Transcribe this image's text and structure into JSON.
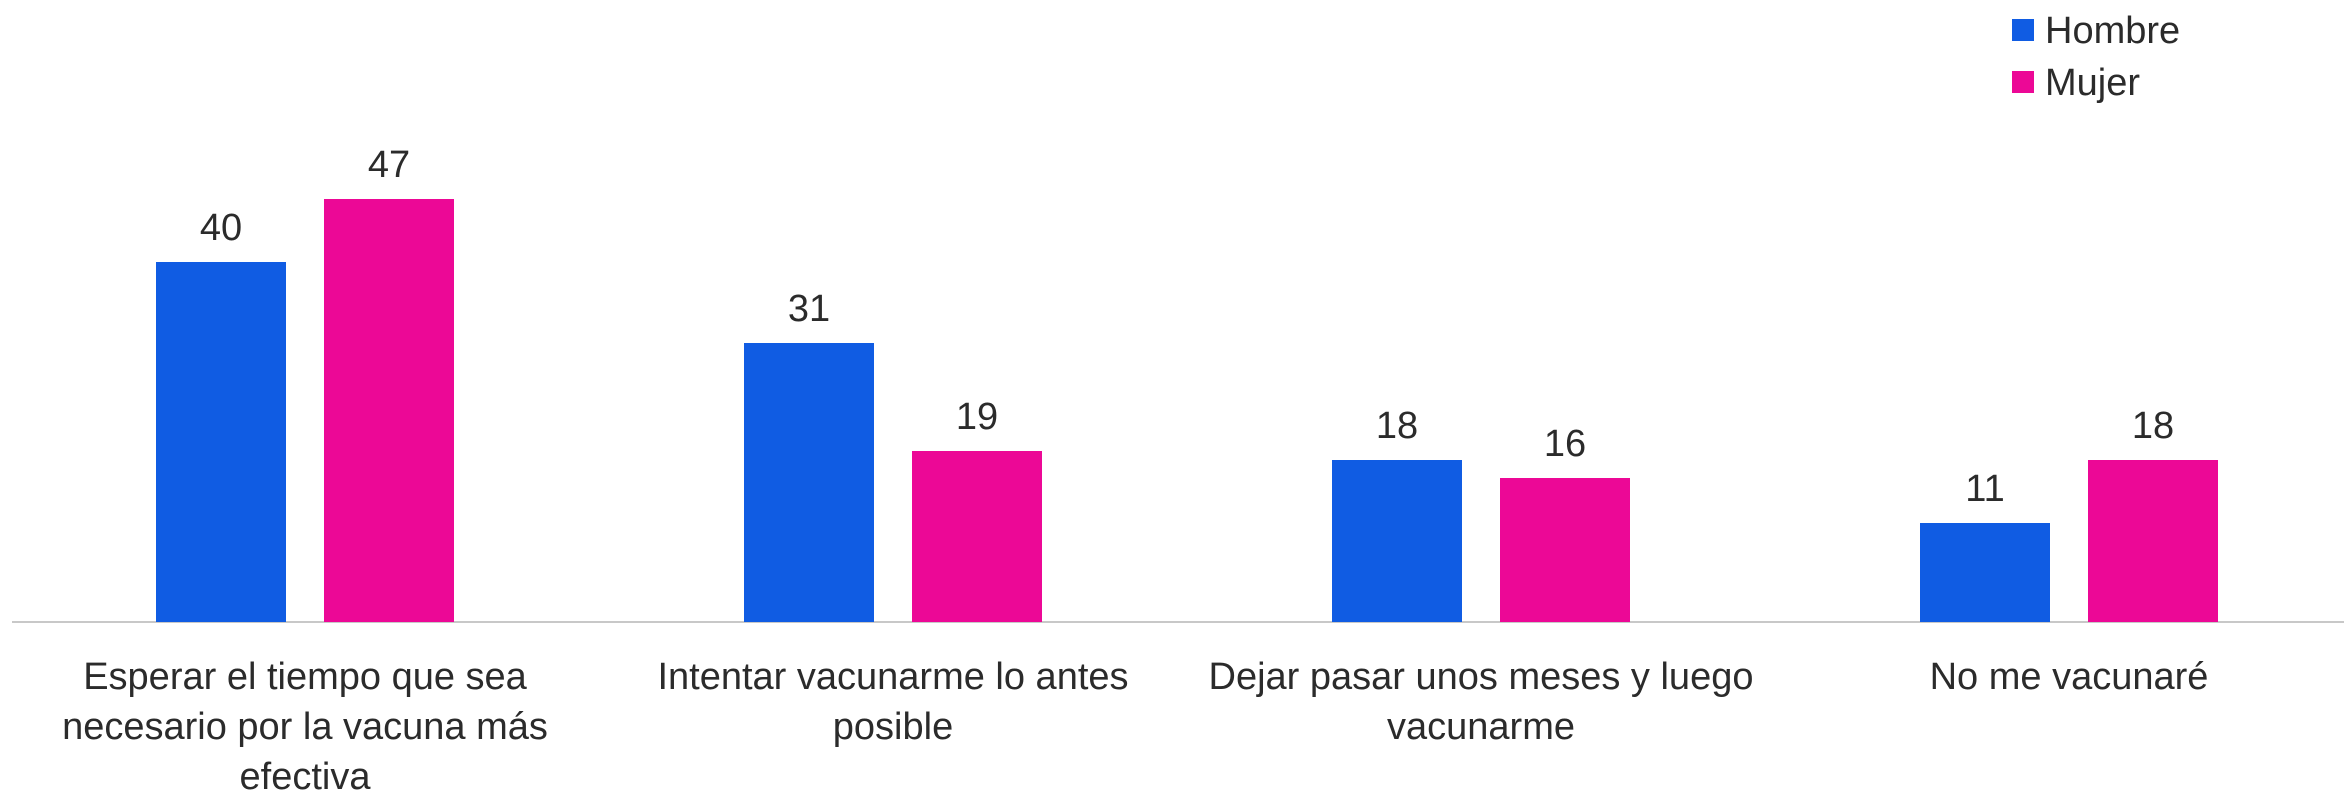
{
  "chart_data": {
    "type": "bar",
    "categories": [
      "Esperar el tiempo que sea necesario por la vacuna más efectiva",
      "Intentar vacunarme lo antes posible",
      "Dejar pasar unos meses y luego vacunarme",
      "No me vacunaré"
    ],
    "series": [
      {
        "name": "Hombre",
        "color": "#105ce3",
        "values": [
          40,
          31,
          18,
          11
        ]
      },
      {
        "name": "Mujer",
        "color": "#ec0896",
        "values": [
          47,
          19,
          16,
          18
        ]
      }
    ],
    "legend": "top-right"
  }
}
